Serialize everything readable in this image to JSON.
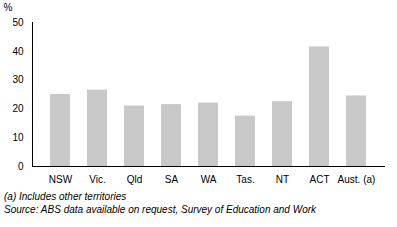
{
  "chart_data": {
    "type": "bar",
    "categories": [
      "NSW",
      "Vic.",
      "Qld",
      "SA",
      "WA",
      "Tas.",
      "NT",
      "ACT",
      "Aust. (a)"
    ],
    "values": [
      25.0,
      26.5,
      21.0,
      21.5,
      22.0,
      17.5,
      22.5,
      41.5,
      24.5
    ],
    "color": "#c8c8c8",
    "ylabel": "%",
    "ylim": [
      0,
      50
    ],
    "yticks": [
      0,
      10,
      20,
      30,
      40,
      50
    ],
    "grid": false,
    "annotations": [
      "(a) Includes other territories",
      "Source: ABS data available on request, Survey of Education and Work"
    ]
  }
}
